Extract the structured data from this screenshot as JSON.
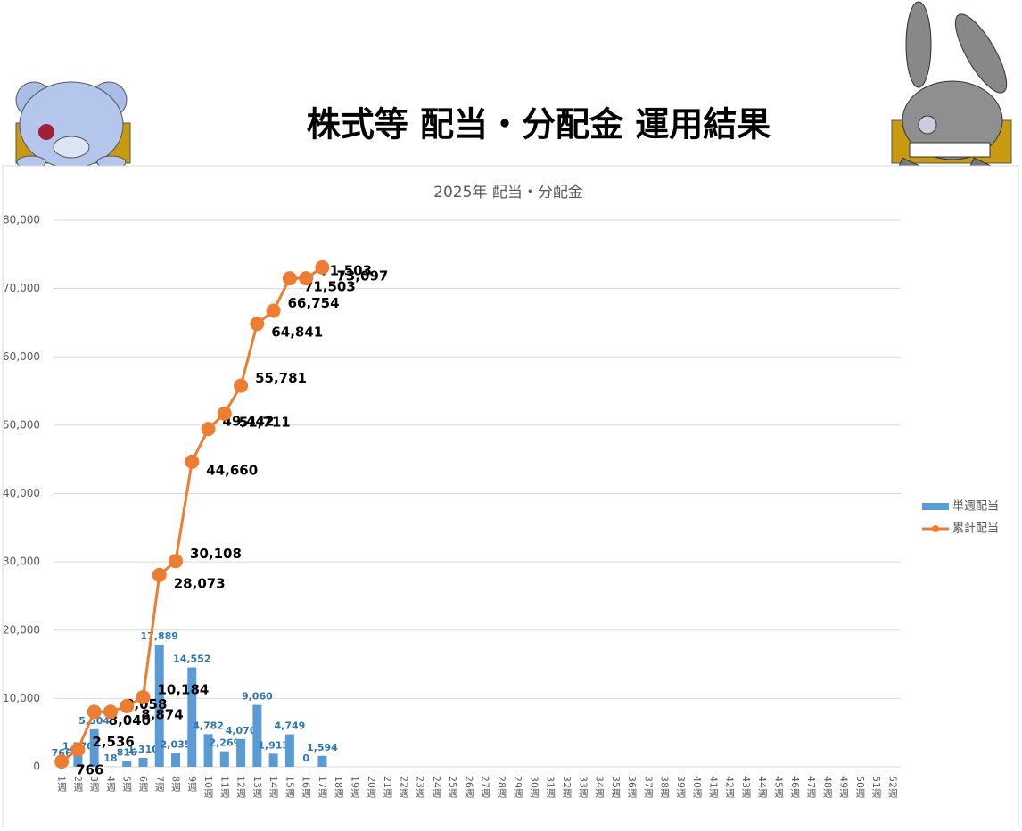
{
  "header": {
    "title": "株式等 配当・分配金 運用結果"
  },
  "chart_data": {
    "type": "bar-line",
    "title": "2025年 配当・分配金",
    "categories": [
      "1週",
      "2週",
      "3週",
      "4週",
      "5週",
      "6週",
      "7週",
      "8週",
      "9週",
      "10週",
      "11週",
      "12週",
      "13週",
      "14週",
      "15週",
      "16週",
      "17週",
      "18週",
      "19週",
      "20週",
      "21週",
      "22週",
      "23週",
      "24週",
      "25週",
      "26週",
      "27週",
      "28週",
      "29週",
      "30週",
      "31週",
      "32週",
      "33週",
      "34週",
      "35週",
      "36週",
      "37週",
      "38週",
      "39週",
      "40週",
      "41週",
      "42週",
      "43週",
      "44週",
      "45週",
      "46週",
      "47週",
      "48週",
      "49週",
      "50週",
      "51週",
      "52週"
    ],
    "series": [
      {
        "name": "単週配当",
        "type": "bar",
        "color": "#5b9bd5",
        "values": [
          766,
          1770,
          5504,
          18,
          816,
          1310,
          17889,
          2035,
          14552,
          4782,
          2269,
          4070,
          9060,
          1913,
          4749,
          0,
          1594,
          null,
          null,
          null,
          null,
          null,
          null,
          null,
          null,
          null,
          null,
          null,
          null,
          null,
          null,
          null,
          null,
          null,
          null,
          null,
          null,
          null,
          null,
          null,
          null,
          null,
          null,
          null,
          null,
          null,
          null,
          null,
          null,
          null,
          null,
          null
        ],
        "value_labels": [
          "766",
          "1,770",
          "5,504",
          "18",
          "816",
          "1,310",
          "17,889",
          "2,035",
          "14,552",
          "4,782",
          "2,269",
          "4,070",
          "9,060",
          "1,913",
          "4,749",
          "0",
          "1,594",
          null,
          null,
          null,
          null,
          null,
          null,
          null,
          null,
          null,
          null,
          null,
          null,
          null,
          null,
          null,
          null,
          null,
          null,
          null,
          null,
          null,
          null,
          null,
          null,
          null,
          null,
          null,
          null,
          null,
          null,
          null,
          null,
          null,
          null,
          null
        ]
      },
      {
        "name": "累計配当",
        "type": "line",
        "color": "#ed7d31",
        "values": [
          766,
          2536,
          8040,
          8058,
          8874,
          10184,
          28073,
          30108,
          44660,
          49442,
          51711,
          55781,
          64841,
          66754,
          71503,
          71503,
          73097,
          null,
          null,
          null,
          null,
          null,
          null,
          null,
          null,
          null,
          null,
          null,
          null,
          null,
          null,
          null,
          null,
          null,
          null,
          null,
          null,
          null,
          null,
          null,
          null,
          null,
          null,
          null,
          null,
          null,
          null,
          null,
          null,
          null,
          null,
          null
        ],
        "value_labels": [
          "766",
          "2,536",
          "8,040",
          "8,058",
          "8,874",
          "10,184",
          "28,073",
          "30,108",
          "44,660",
          "49,442",
          "51,711",
          "55,781",
          "64,841",
          "66,754",
          "71,503",
          "71,503",
          "73,097",
          null,
          null,
          null,
          null,
          null,
          null,
          null,
          null,
          null,
          null,
          null,
          null,
          null,
          null,
          null,
          null,
          null,
          null,
          null,
          null,
          null,
          null,
          null,
          null,
          null,
          null,
          null,
          null,
          null,
          null,
          null,
          null,
          null,
          null,
          null
        ]
      }
    ],
    "ylim": [
      0,
      80000
    ],
    "yticks": [
      0,
      {
        "value": 10000,
        "label": "10,000"
      },
      {
        "value": 20000,
        "label": "20,000"
      },
      {
        "value": 30000,
        "label": "30,000"
      },
      {
        "value": 40000,
        "label": "40,000"
      },
      {
        "value": 50000,
        "label": "50,000"
      },
      {
        "value": 60000,
        "label": "60,000"
      },
      {
        "value": 70000,
        "label": "70,000"
      },
      {
        "value": 80000,
        "label": "80,000"
      }
    ],
    "grid": true,
    "legend": "right"
  }
}
